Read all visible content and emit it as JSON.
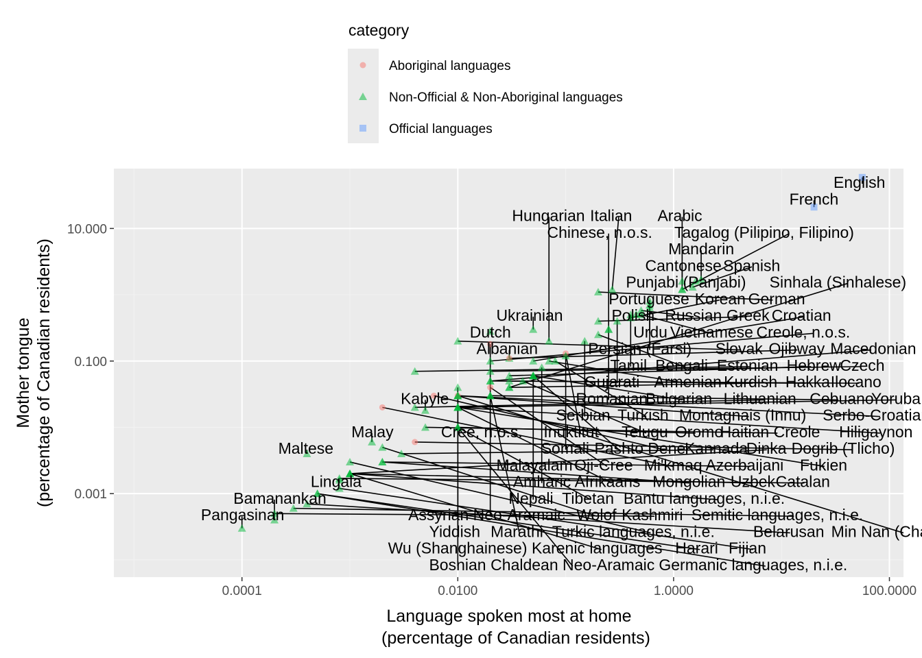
{
  "chart_data": {
    "type": "scatter",
    "title": "",
    "xlabel": [
      "Language spoken most at home",
      "(percentage of Canadian residents)"
    ],
    "ylabel": [
      "Mother tongue",
      "(percentage of Canadian residents)"
    ],
    "xscale": "log10",
    "yscale": "log10",
    "xlim": [
      6.5e-06,
      135
    ],
    "ylim": [
      5.5e-05,
      80
    ],
    "x_ticks": [
      0.0001,
      0.01,
      1,
      100
    ],
    "x_tick_labels": [
      "0.0001",
      "0.0100",
      "1.0000",
      "100.0000"
    ],
    "y_ticks": [
      0.001,
      0.1,
      10
    ],
    "y_tick_labels": [
      "0.001",
      "0.100",
      "10.000"
    ],
    "grid": true,
    "legend": {
      "title": "category",
      "placement": "top",
      "entries": [
        {
          "label": "Aboriginal languages",
          "shape": "circle",
          "color": "#f8766d"
        },
        {
          "label": "Non-Official & Non-Aboriginal languages",
          "shape": "triangle",
          "color": "#00ba38"
        },
        {
          "label": "Official languages",
          "shape": "square",
          "color": "#619cff"
        }
      ]
    },
    "colors": {
      "panel": "#ebebeb",
      "grid_major": "#ffffff",
      "grid_minor": "#f2f2f2",
      "legend_key": "#ebebeb"
    },
    "labels": [
      {
        "text": "English",
        "x": 56.0,
        "y": 59.0,
        "cat": "off"
      },
      {
        "text": "French",
        "x": 20.0,
        "y": 21.0,
        "cat": "off"
      },
      {
        "text": "Pangasinan",
        "x": 0.0001,
        "y": 0.0003,
        "cat": "non"
      },
      {
        "text": "Bamanankan",
        "x": 0.0002,
        "y": 0.0004,
        "cat": "non"
      },
      {
        "text": "Lingala",
        "x": 0.0008,
        "y": 0.0016,
        "cat": "non"
      },
      {
        "text": "Maltese",
        "x": 0.0004,
        "y": 0.004,
        "cat": "non"
      },
      {
        "text": "Malay",
        "x": 0.0016,
        "y": 0.006,
        "cat": "non"
      },
      {
        "text": "Kabyle",
        "x": 0.005,
        "y": 0.018,
        "cat": "non"
      },
      {
        "text": "Dutch",
        "x": 0.02,
        "y": 0.28,
        "cat": "non"
      },
      {
        "text": "Albanian",
        "x": 0.03,
        "y": 0.11,
        "cat": "non"
      },
      {
        "text": "Ukrainian",
        "x": 0.05,
        "y": 0.3,
        "cat": "non"
      },
      {
        "text": "Polish",
        "x": 0.45,
        "y": 0.51,
        "cat": "non"
      },
      {
        "text": "Portuguese",
        "x": 0.6,
        "y": 0.64,
        "cat": "non"
      },
      {
        "text": "Punjabi (Panjabi)",
        "x": 1.6,
        "y": 1.6,
        "cat": "non"
      },
      {
        "text": "Cantonese",
        "x": 1.2,
        "y": 1.6,
        "cat": "non"
      },
      {
        "text": "Urdu",
        "x": 0.6,
        "y": 0.8,
        "cat": "non"
      },
      {
        "text": "Mandarin",
        "x": 1.8,
        "y": 1.7,
        "cat": "non"
      },
      {
        "text": "Persian (Farsi)",
        "x": 0.6,
        "y": 0.7,
        "cat": "non"
      },
      {
        "text": "Russian",
        "x": 0.5,
        "y": 0.58,
        "cat": "non"
      },
      {
        "text": "Tamil",
        "x": 0.4,
        "y": 0.5,
        "cat": "non"
      },
      {
        "text": "Gujarati",
        "x": 0.3,
        "y": 0.4,
        "cat": "non"
      },
      {
        "text": "Vietnamese",
        "x": 0.5,
        "y": 0.5,
        "cat": "non"
      },
      {
        "text": "Korean",
        "x": 0.4,
        "y": 0.45,
        "cat": "non"
      },
      {
        "text": "Romanian",
        "x": 0.25,
        "y": 0.3,
        "cat": "non"
      },
      {
        "text": "Serbian",
        "x": 0.15,
        "y": 0.2,
        "cat": "non"
      },
      {
        "text": "Cree, n.o.s.",
        "x": 0.02,
        "y": 0.18,
        "cat": "abo"
      },
      {
        "text": "Chinese, n.o.s.",
        "x": 0.25,
        "y": 0.3,
        "cat": "non"
      },
      {
        "text": "Inuktitut",
        "x": 0.1,
        "y": 0.13,
        "cat": "abo"
      },
      {
        "text": "Bengali",
        "x": 0.2,
        "y": 0.25,
        "cat": "non"
      },
      {
        "text": "Somali",
        "x": 0.1,
        "y": 0.12,
        "cat": "non"
      },
      {
        "text": "Malayalam",
        "x": 0.05,
        "y": 0.06,
        "cat": "non"
      },
      {
        "text": "Armenian",
        "x": 0.07,
        "y": 0.1,
        "cat": "non"
      },
      {
        "text": "Turkish",
        "x": 0.08,
        "y": 0.1,
        "cat": "non"
      },
      {
        "text": "Amharic",
        "x": 0.06,
        "y": 0.08,
        "cat": "non"
      },
      {
        "text": "Bulgarian",
        "x": 0.05,
        "y": 0.06,
        "cat": "non"
      },
      {
        "text": "Nepali",
        "x": 0.05,
        "y": 0.06,
        "cat": "non"
      },
      {
        "text": "Pashto",
        "x": 0.05,
        "y": 0.06,
        "cat": "non"
      },
      {
        "text": "Telugu",
        "x": 0.04,
        "y": 0.05,
        "cat": "non"
      },
      {
        "text": "Assyrian Neo-Aramaic",
        "x": 0.02,
        "y": 0.03,
        "cat": "non"
      },
      {
        "text": "Hungarian",
        "x": 0.07,
        "y": 0.2,
        "cat": "non"
      },
      {
        "text": "Yiddish",
        "x": 0.01,
        "y": 0.04,
        "cat": "non"
      },
      {
        "text": "Wu (Shanghainese)",
        "x": 0.01,
        "y": 0.03,
        "cat": "non"
      },
      {
        "text": "Oji-Cree",
        "x": 0.02,
        "y": 0.04,
        "cat": "abo"
      },
      {
        "text": "Marathi",
        "x": 0.02,
        "y": 0.03,
        "cat": "non"
      },
      {
        "text": "Kurdish",
        "x": 0.03,
        "y": 0.04,
        "cat": "non"
      },
      {
        "text": "Bosnian",
        "x": 0.01,
        "y": 0.03,
        "cat": "non"
      },
      {
        "text": "Afrikaans",
        "x": 0.01,
        "y": 0.02,
        "cat": "non"
      },
      {
        "text": "Tibetan",
        "x": 0.01,
        "y": 0.01,
        "cat": "non"
      },
      {
        "text": "Montagnais (Innu)",
        "x": 0.01,
        "y": 0.03,
        "cat": "abo"
      },
      {
        "text": "Dene",
        "x": 0.006,
        "y": 0.03,
        "cat": "abo"
      },
      {
        "text": "Oromo",
        "x": 0.01,
        "y": 0.01,
        "cat": "non"
      },
      {
        "text": "Chaldean Neo-Aramaic",
        "x": 0.01,
        "y": 0.01,
        "cat": "non"
      },
      {
        "text": "Lithuanian",
        "x": 0.004,
        "y": 0.02,
        "cat": "non"
      },
      {
        "text": "Mi'kmaq",
        "x": 0.002,
        "y": 0.02,
        "cat": "abo"
      },
      {
        "text": "Wolof",
        "x": 0.002,
        "y": 0.005,
        "cat": "non"
      },
      {
        "text": "Turkic languages, n.i.e.",
        "x": 0.001,
        "y": 0.003,
        "cat": "non"
      },
      {
        "text": "Karenic languages",
        "x": 0.001,
        "y": 0.002,
        "cat": "non"
      },
      {
        "text": "Bantu languages, n.i.e.",
        "x": 0.001,
        "y": 0.002,
        "cat": "non"
      },
      {
        "text": "Mongolian",
        "x": 0.002,
        "y": 0.003,
        "cat": "non"
      },
      {
        "text": "Kannada",
        "x": 0.003,
        "y": 0.004,
        "cat": "non"
      },
      {
        "text": "Kashmiri",
        "x": 0.0002,
        "y": 0.0005,
        "cat": "non"
      },
      {
        "text": "Semitic languages, n.i.e.",
        "x": 0.0003,
        "y": 0.0006,
        "cat": "non"
      },
      {
        "text": "Slovak",
        "x": 0.01,
        "y": 0.2,
        "cat": "non"
      },
      {
        "text": "Estonian",
        "x": 0.004,
        "y": 0.07,
        "cat": "non"
      },
      {
        "text": "Azerbaijani",
        "x": 0.002,
        "y": 0.003,
        "cat": "non"
      },
      {
        "text": "Haitian Creole",
        "x": 0.005,
        "y": 0.01,
        "cat": "non"
      },
      {
        "text": "Uzbek",
        "x": 0.001,
        "y": 0.002,
        "cat": "non"
      },
      {
        "text": "Dinka",
        "x": 0.001,
        "y": 0.002,
        "cat": "non"
      },
      {
        "text": "Harari",
        "x": 0.0005,
        "y": 0.001,
        "cat": "non"
      },
      {
        "text": "Dogrib (Tlicho)",
        "x": 0.004,
        "y": 0.006,
        "cat": "abo"
      },
      {
        "text": "Germanic languages, n.i.e.",
        "x": 0.0005,
        "y": 0.001,
        "cat": "non"
      },
      {
        "text": "Catalan",
        "x": 0.0008,
        "y": 0.0017,
        "cat": "non"
      },
      {
        "text": "Belarusan",
        "x": 0.0004,
        "y": 0.0007,
        "cat": "non"
      },
      {
        "text": "Fijian",
        "x": 0.0008,
        "y": 0.0012,
        "cat": "non"
      },
      {
        "text": "Ojibway",
        "x": 0.03,
        "y": 0.11,
        "cat": "abo"
      },
      {
        "text": "Italian",
        "x": 0.27,
        "y": 1.2,
        "cat": "non"
      },
      {
        "text": "Spanish",
        "x": 1.5,
        "y": 1.3,
        "cat": "non"
      },
      {
        "text": "Tagalog (Pilipino, Filipino)",
        "x": 1.2,
        "y": 1.2,
        "cat": "non"
      },
      {
        "text": "Arabic",
        "x": 1.2,
        "y": 1.2,
        "cat": "non"
      },
      {
        "text": "German",
        "x": 0.2,
        "y": 1.1,
        "cat": "non"
      },
      {
        "text": "Greek",
        "x": 0.2,
        "y": 0.4,
        "cat": "non"
      },
      {
        "text": "Creole, n.o.s.",
        "x": 0.02,
        "y": 0.1,
        "cat": "non"
      },
      {
        "text": "Hebrew",
        "x": 0.03,
        "y": 0.06,
        "cat": "non"
      },
      {
        "text": "Hakka",
        "x": 0.02,
        "y": 0.05,
        "cat": "non"
      },
      {
        "text": "Croatian",
        "x": 0.05,
        "y": 0.1,
        "cat": "non"
      },
      {
        "text": "Czech",
        "x": 0.02,
        "y": 0.07,
        "cat": "non"
      },
      {
        "text": "Ilocano",
        "x": 0.03,
        "y": 0.05,
        "cat": "non"
      },
      {
        "text": "Cebuano",
        "x": 0.02,
        "y": 0.03,
        "cat": "non"
      },
      {
        "text": "Sinhala (Sinhalese)",
        "x": 0.03,
        "y": 0.04,
        "cat": "non"
      },
      {
        "text": "Serbo-Croatian",
        "x": 0.01,
        "y": 0.03,
        "cat": "non"
      },
      {
        "text": "Hiligaynon",
        "x": 0.01,
        "y": 0.02,
        "cat": "non"
      },
      {
        "text": "Yoruba",
        "x": 0.01,
        "y": 0.02,
        "cat": "non"
      },
      {
        "text": "Macedonian",
        "x": 0.02,
        "y": 0.05,
        "cat": "non"
      },
      {
        "text": "Min Nan (Chaochow, Teochow, Fukien, Taiwanese)",
        "x": 0.01,
        "y": 0.03,
        "cat": "non"
      },
      {
        "text": "Fukien",
        "x": 0.01,
        "y": 0.02,
        "cat": "non"
      }
    ]
  }
}
